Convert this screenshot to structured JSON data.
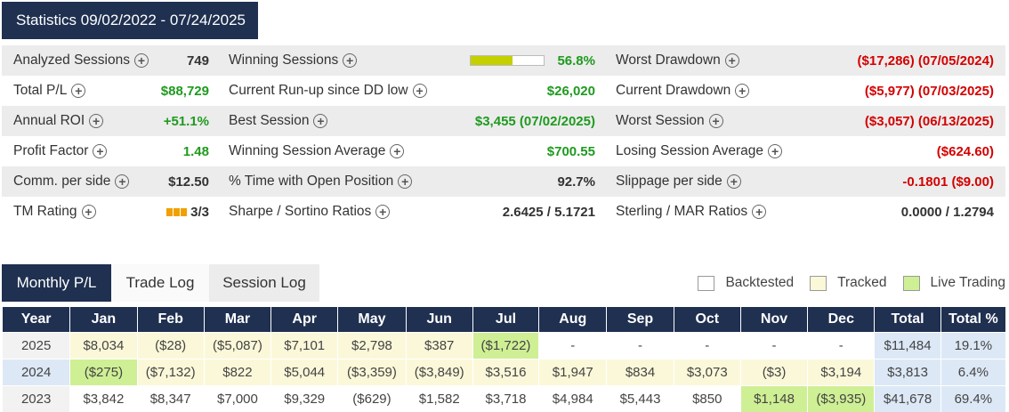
{
  "header": {
    "title": "Statistics 09/02/2022 - 07/24/2025"
  },
  "stats": {
    "col1": [
      {
        "label": "Analyzed Sessions",
        "value": "749",
        "color": "dark"
      },
      {
        "label": "Total P/L",
        "value": "$88,729",
        "color": "green"
      },
      {
        "label": "Annual ROI",
        "value": "+51.1%",
        "color": "green"
      },
      {
        "label": "Profit Factor",
        "value": "1.48",
        "color": "green"
      },
      {
        "label": "Comm. per side",
        "value": "$12.50",
        "color": "dark"
      },
      {
        "label": "TM Rating",
        "value": "3/3",
        "color": "dark"
      }
    ],
    "col2": [
      {
        "label": "Winning Sessions",
        "value": "56.8%",
        "color": "green",
        "bar_fraction": 0.568
      },
      {
        "label": "Current Run-up since DD low",
        "value": "$26,020",
        "color": "green"
      },
      {
        "label": "Best Session",
        "value": "$3,455 (07/02/2025)",
        "color": "green"
      },
      {
        "label": "Winning Session Average",
        "value": "$700.55",
        "color": "green"
      },
      {
        "label": "% Time with Open Position",
        "value": "92.7%",
        "color": "dark"
      },
      {
        "label": "Sharpe / Sortino Ratios",
        "value": "2.6425 / 5.1721",
        "color": "dark"
      }
    ],
    "col3": [
      {
        "label": "Worst Drawdown",
        "value": "($17,286) (07/05/2024)",
        "color": "red"
      },
      {
        "label": "Current Drawdown",
        "value": "($5,977) (07/03/2025)",
        "color": "red"
      },
      {
        "label": "Worst Session",
        "value": "($3,057) (06/13/2025)",
        "color": "red"
      },
      {
        "label": "Losing Session Average",
        "value": "($624.60)",
        "color": "red"
      },
      {
        "label": "Slippage per side",
        "value": "-0.1801 ($9.00)",
        "color": "red"
      },
      {
        "label": "Sterling / MAR Ratios",
        "value": "0.0000 / 1.2794",
        "color": "dark"
      }
    ]
  },
  "tabs": [
    {
      "label": "Monthly P/L",
      "active": true
    },
    {
      "label": "Trade Log",
      "active": false
    },
    {
      "label": "Session Log",
      "active": false
    }
  ],
  "legend": [
    {
      "label": "Backtested",
      "color": "#ffffff"
    },
    {
      "label": "Tracked",
      "color": "#fbf8d9"
    },
    {
      "label": "Live Trading",
      "color": "#cfef95"
    }
  ],
  "table": {
    "headers": [
      "Year",
      "Jan",
      "Feb",
      "Mar",
      "Apr",
      "May",
      "Jun",
      "Jul",
      "Aug",
      "Sep",
      "Oct",
      "Nov",
      "Dec",
      "Total",
      "Total %"
    ],
    "rows": [
      {
        "year": "2025",
        "cells": [
          {
            "v": "$8,034",
            "s": "tracked"
          },
          {
            "v": "($28)",
            "s": "tracked"
          },
          {
            "v": "($5,087)",
            "s": "tracked"
          },
          {
            "v": "$7,101",
            "s": "tracked"
          },
          {
            "v": "$2,798",
            "s": "tracked"
          },
          {
            "v": "$387",
            "s": "tracked"
          },
          {
            "v": "($1,722)",
            "s": "live"
          },
          {
            "v": "-",
            "s": ""
          },
          {
            "v": "-",
            "s": ""
          },
          {
            "v": "-",
            "s": ""
          },
          {
            "v": "-",
            "s": ""
          },
          {
            "v": "-",
            "s": ""
          }
        ],
        "total": "$11,484",
        "total_pct": "19.1%"
      },
      {
        "year": "2024",
        "cells": [
          {
            "v": "($275)",
            "s": "live"
          },
          {
            "v": "($7,132)",
            "s": "tracked"
          },
          {
            "v": "$822",
            "s": "tracked"
          },
          {
            "v": "$5,044",
            "s": "tracked"
          },
          {
            "v": "($3,359)",
            "s": "tracked"
          },
          {
            "v": "($3,849)",
            "s": "tracked"
          },
          {
            "v": "$3,516",
            "s": "tracked"
          },
          {
            "v": "$1,947",
            "s": "tracked"
          },
          {
            "v": "$834",
            "s": "tracked"
          },
          {
            "v": "$3,073",
            "s": "tracked"
          },
          {
            "v": "($3)",
            "s": "tracked"
          },
          {
            "v": "$3,194",
            "s": "tracked"
          }
        ],
        "total": "$3,813",
        "total_pct": "6.4%"
      },
      {
        "year": "2023",
        "cells": [
          {
            "v": "$3,842",
            "s": ""
          },
          {
            "v": "$8,347",
            "s": ""
          },
          {
            "v": "$7,000",
            "s": ""
          },
          {
            "v": "$9,329",
            "s": ""
          },
          {
            "v": "($629)",
            "s": ""
          },
          {
            "v": "$1,582",
            "s": ""
          },
          {
            "v": "$3,718",
            "s": ""
          },
          {
            "v": "$4,984",
            "s": ""
          },
          {
            "v": "$5,443",
            "s": ""
          },
          {
            "v": "$850",
            "s": ""
          },
          {
            "v": "$1,148",
            "s": "live"
          },
          {
            "v": "($3,935)",
            "s": "live"
          }
        ],
        "total": "$41,678",
        "total_pct": "69.4%"
      }
    ]
  }
}
